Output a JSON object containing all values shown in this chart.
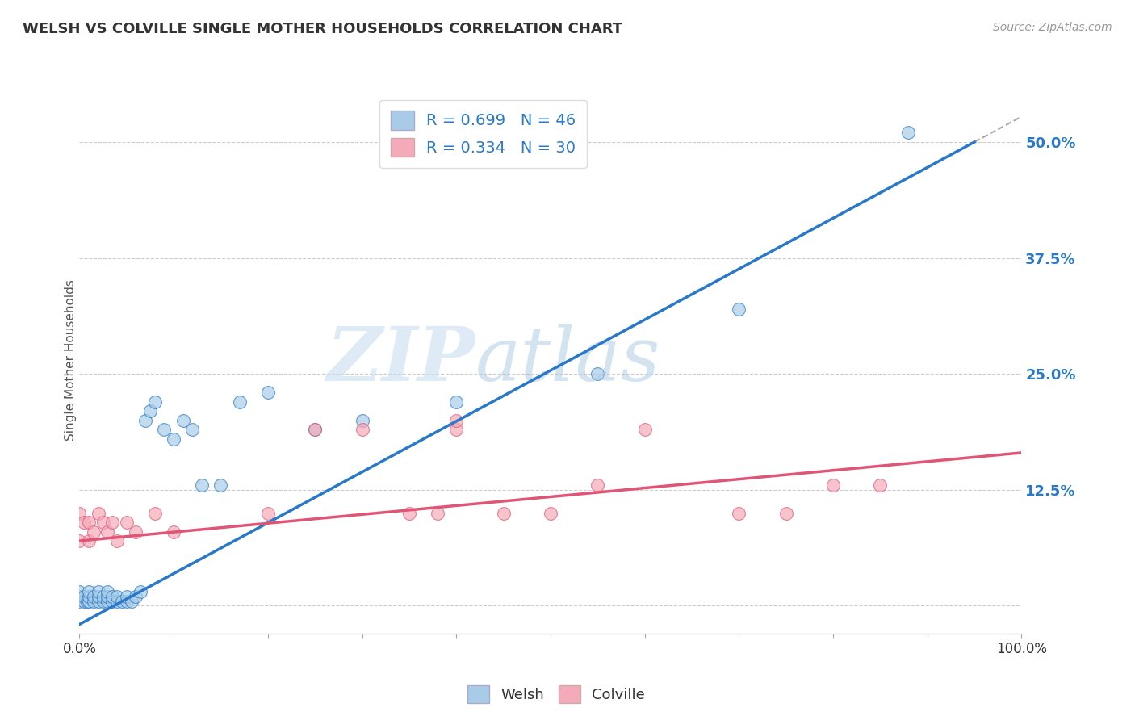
{
  "title": "WELSH VS COLVILLE SINGLE MOTHER HOUSEHOLDS CORRELATION CHART",
  "source": "Source: ZipAtlas.com",
  "ylabel": "Single Mother Households",
  "xlim": [
    0,
    1.0
  ],
  "ylim": [
    -0.03,
    0.56
  ],
  "x_ticks": [
    0.0,
    0.1,
    0.2,
    0.3,
    0.4,
    0.5,
    0.6,
    0.7,
    0.8,
    0.9,
    1.0
  ],
  "x_tick_labels": [
    "0.0%",
    "",
    "",
    "",
    "",
    "",
    "",
    "",
    "",
    "",
    "100.0%"
  ],
  "y_ticks": [
    0.0,
    0.125,
    0.25,
    0.375,
    0.5
  ],
  "y_tick_labels": [
    "",
    "12.5%",
    "25.0%",
    "37.5%",
    "50.0%"
  ],
  "welsh_R": 0.699,
  "welsh_N": 46,
  "colville_R": 0.334,
  "colville_N": 30,
  "blue_color": "#a8cce8",
  "pink_color": "#f4aab8",
  "blue_line_color": "#2979c8",
  "pink_line_color": "#e05575",
  "welsh_x": [
    0.0,
    0.0,
    0.0,
    0.005,
    0.005,
    0.008,
    0.01,
    0.01,
    0.01,
    0.015,
    0.015,
    0.02,
    0.02,
    0.02,
    0.025,
    0.025,
    0.03,
    0.03,
    0.03,
    0.035,
    0.035,
    0.04,
    0.04,
    0.045,
    0.05,
    0.05,
    0.055,
    0.06,
    0.065,
    0.07,
    0.075,
    0.08,
    0.09,
    0.1,
    0.11,
    0.12,
    0.13,
    0.15,
    0.17,
    0.2,
    0.25,
    0.3,
    0.4,
    0.55,
    0.7,
    0.88
  ],
  "welsh_y": [
    0.005,
    0.01,
    0.015,
    0.005,
    0.01,
    0.005,
    0.005,
    0.01,
    0.015,
    0.005,
    0.01,
    0.005,
    0.01,
    0.015,
    0.005,
    0.01,
    0.005,
    0.01,
    0.015,
    0.005,
    0.01,
    0.005,
    0.01,
    0.005,
    0.005,
    0.01,
    0.005,
    0.01,
    0.015,
    0.2,
    0.21,
    0.22,
    0.19,
    0.18,
    0.2,
    0.19,
    0.13,
    0.13,
    0.22,
    0.23,
    0.19,
    0.2,
    0.22,
    0.25,
    0.32,
    0.51
  ],
  "colville_x": [
    0.0,
    0.0,
    0.005,
    0.01,
    0.01,
    0.015,
    0.02,
    0.025,
    0.03,
    0.035,
    0.04,
    0.05,
    0.06,
    0.08,
    0.1,
    0.2,
    0.25,
    0.3,
    0.35,
    0.38,
    0.4,
    0.4,
    0.45,
    0.5,
    0.55,
    0.6,
    0.7,
    0.75,
    0.8,
    0.85
  ],
  "colville_y": [
    0.07,
    0.1,
    0.09,
    0.07,
    0.09,
    0.08,
    0.1,
    0.09,
    0.08,
    0.09,
    0.07,
    0.09,
    0.08,
    0.1,
    0.08,
    0.1,
    0.19,
    0.19,
    0.1,
    0.1,
    0.19,
    0.2,
    0.1,
    0.1,
    0.13,
    0.19,
    0.1,
    0.1,
    0.13,
    0.13
  ],
  "welsh_line_x": [
    0.0,
    0.95
  ],
  "welsh_line_y": [
    -0.02,
    0.5
  ],
  "colville_line_x": [
    0.0,
    1.0
  ],
  "colville_line_y": [
    0.07,
    0.165
  ]
}
